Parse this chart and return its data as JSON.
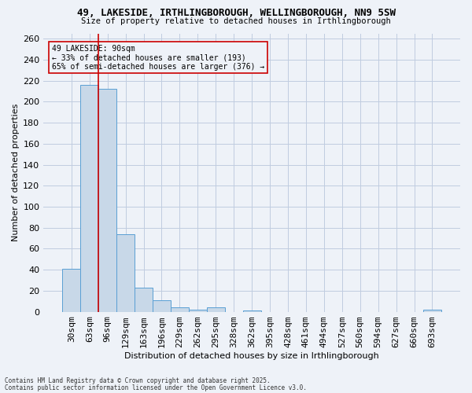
{
  "title_line1": "49, LAKESIDE, IRTHLINGBOROUGH, WELLINGBOROUGH, NN9 5SW",
  "title_line2": "Size of property relative to detached houses in Irthlingborough",
  "xlabel": "Distribution of detached houses by size in Irthlingborough",
  "ylabel": "Number of detached properties",
  "footer_line1": "Contains HM Land Registry data © Crown copyright and database right 2025.",
  "footer_line2": "Contains public sector information licensed under the Open Government Licence v3.0.",
  "categories": [
    "30sqm",
    "63sqm",
    "96sqm",
    "129sqm",
    "163sqm",
    "196sqm",
    "229sqm",
    "262sqm",
    "295sqm",
    "328sqm",
    "362sqm",
    "395sqm",
    "428sqm",
    "461sqm",
    "494sqm",
    "527sqm",
    "560sqm",
    "594sqm",
    "627sqm",
    "660sqm",
    "693sqm"
  ],
  "values": [
    41,
    216,
    212,
    74,
    23,
    11,
    4,
    2,
    4,
    0,
    1,
    0,
    0,
    0,
    0,
    0,
    0,
    0,
    0,
    0,
    2
  ],
  "bar_color": "#c8d8e8",
  "bar_edge_color": "#5a9fd4",
  "grid_color": "#c0cce0",
  "background_color": "#eef2f8",
  "vline_x": 1.5,
  "vline_color": "#cc0000",
  "annotation_text": "49 LAKESIDE: 90sqm\n← 33% of detached houses are smaller (193)\n65% of semi-detached houses are larger (376) →",
  "annotation_box_color": "#cc0000",
  "ylim": [
    0,
    265
  ],
  "yticks": [
    0,
    20,
    40,
    60,
    80,
    100,
    120,
    140,
    160,
    180,
    200,
    220,
    240,
    260
  ]
}
